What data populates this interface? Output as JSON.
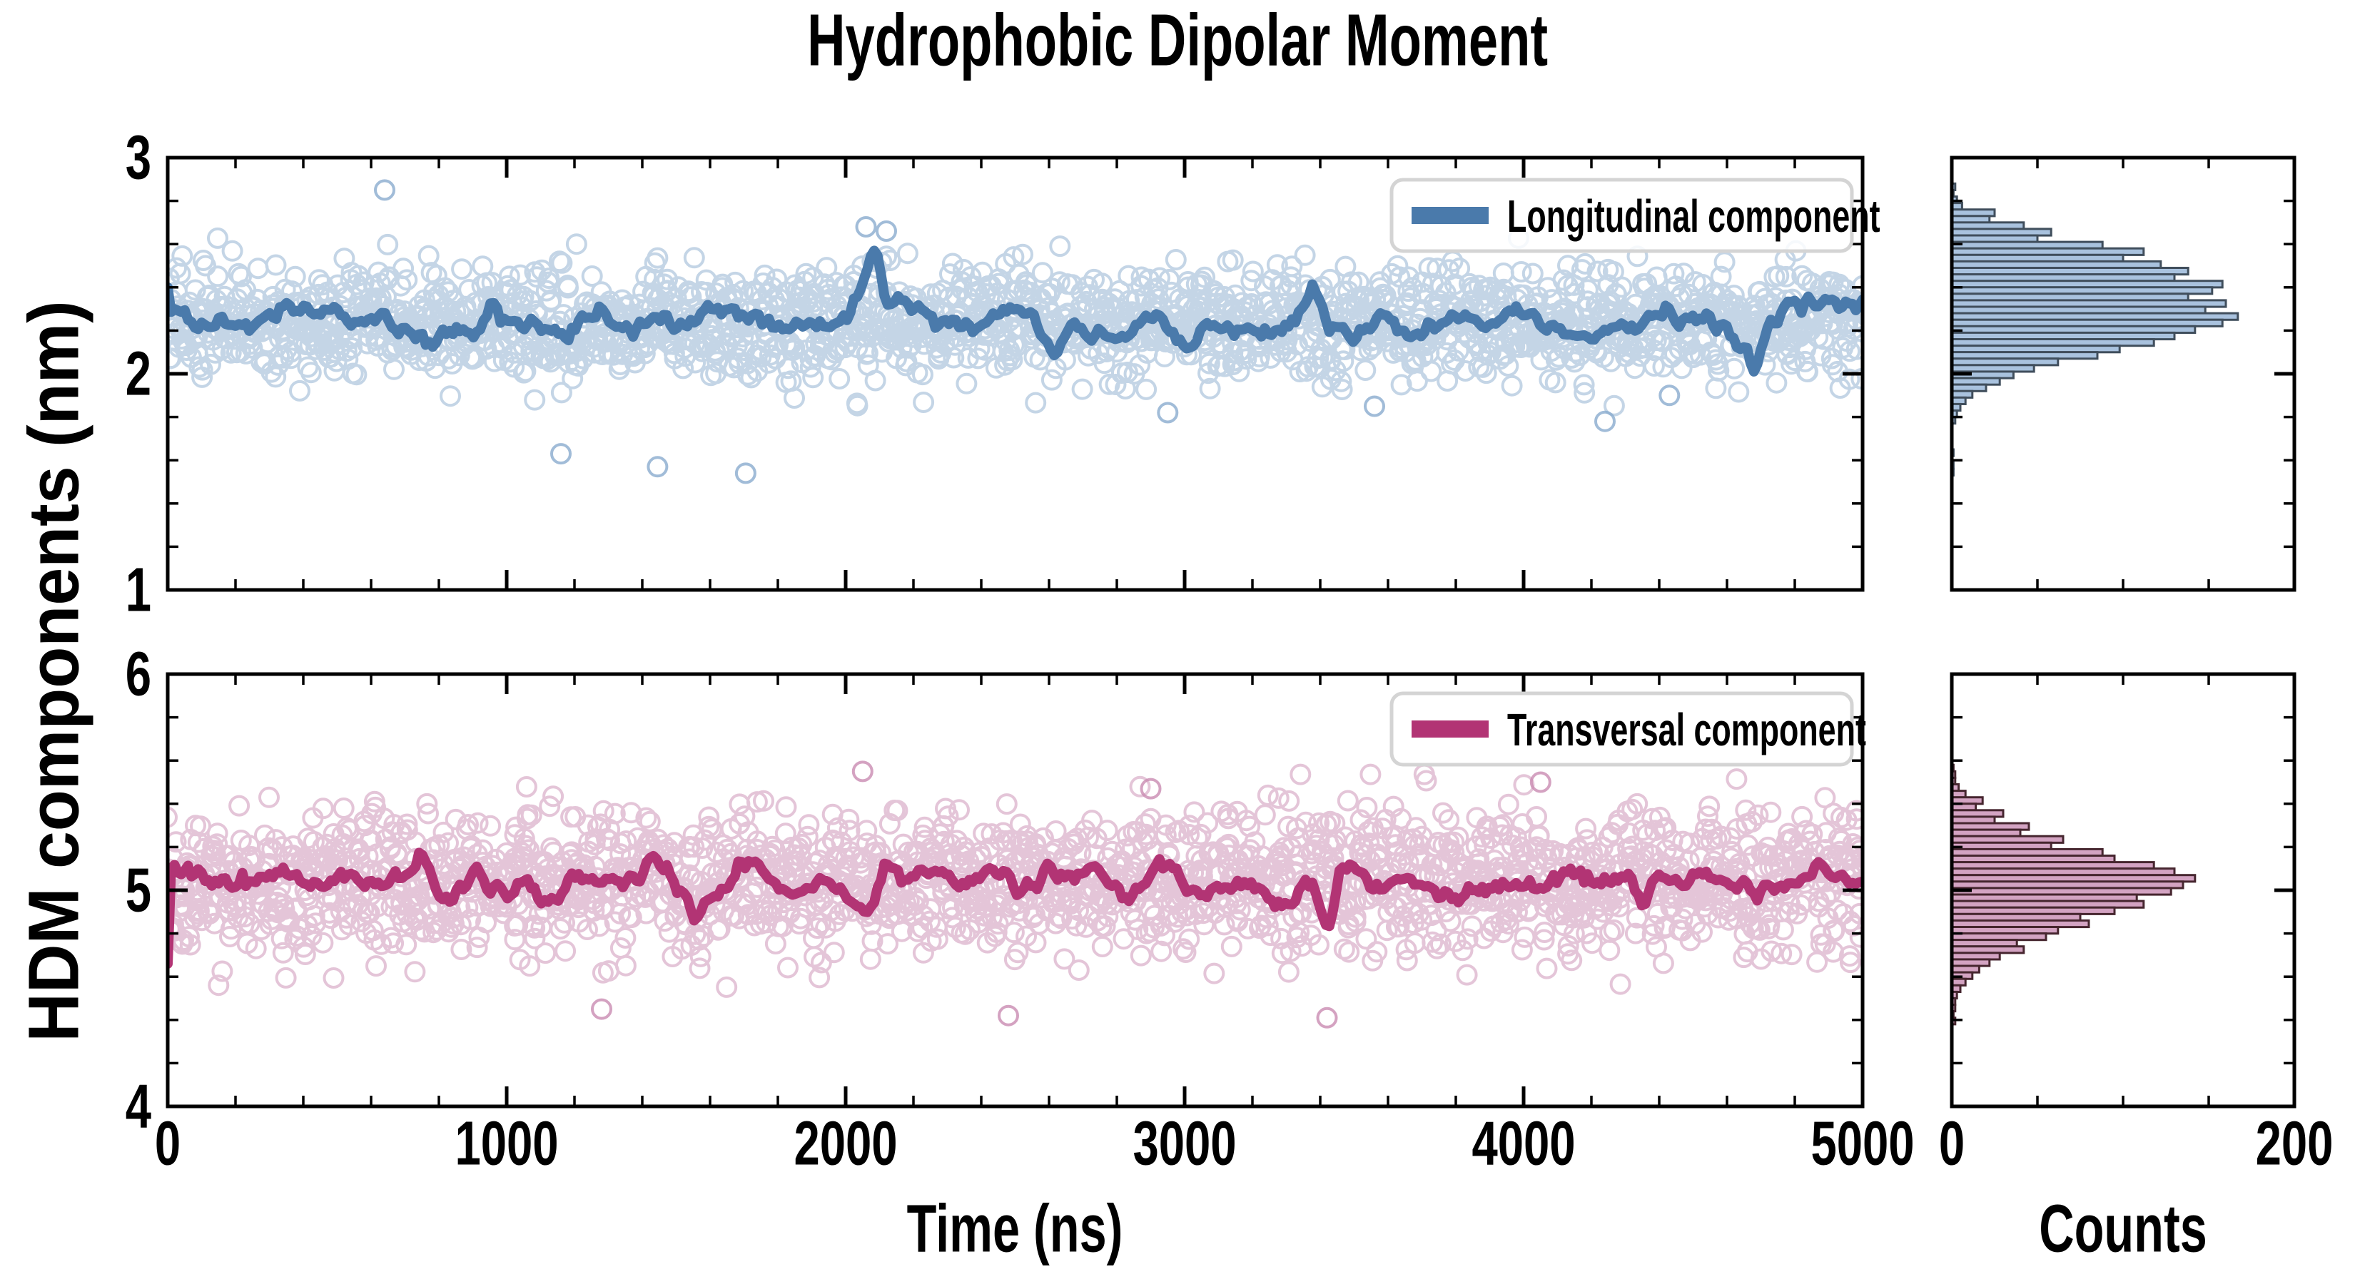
{
  "chart_data": {
    "type": "scatter+line with marginal histograms",
    "title": "Hydrophobic Dipolar Moment",
    "x_axis": {
      "label": "Time (ns)",
      "range": [
        0,
        5000
      ],
      "major_ticks": [
        0,
        1000,
        2000,
        3000,
        4000,
        5000
      ],
      "minor_tick_step": 200
    },
    "y_axis": {
      "label": "HDM components (nm)"
    },
    "counts_axis": {
      "label": "Counts",
      "range": [
        0,
        200
      ],
      "major_ticks": [
        0,
        200
      ],
      "minor_ticks": [
        50,
        100,
        150
      ]
    },
    "panels": [
      {
        "id": "longitudinal",
        "legend": "Longitudinal component",
        "ylim": [
          1,
          3
        ],
        "major_yticks": [
          1,
          2,
          3
        ],
        "minor_ytick_step": 0.2,
        "line_color": "#4a7aab",
        "scatter_color": "#8aabce",
        "hist_fill": "#a9c2de",
        "hist_edge": "#404e5c",
        "series": {
          "mean": 2.24,
          "std": 0.125,
          "n": 2000,
          "seed": 20240,
          "line_start": 2.4,
          "line_features": [
            {
              "x": 2080,
              "dy": 0.2
            },
            {
              "x": 3380,
              "dy": 0.16
            },
            {
              "x": 2620,
              "dy": -0.13
            },
            {
              "x": 4680,
              "dy": -0.12
            },
            {
              "x": 960,
              "dy": 0.1
            }
          ],
          "outliers": [
            [
              640,
              2.85
            ],
            [
              1160,
              1.63
            ],
            [
              1445,
              1.57
            ],
            [
              1705,
              1.54
            ],
            [
              2060,
              2.68
            ],
            [
              2120,
              2.66
            ],
            [
              2950,
              1.82
            ],
            [
              3560,
              1.85
            ],
            [
              4240,
              1.78
            ],
            [
              4430,
              1.9
            ]
          ]
        },
        "histogram": {
          "bin_width": 0.03,
          "centers": [
            2.865,
            2.835,
            2.805,
            2.775,
            2.745,
            2.715,
            2.685,
            2.655,
            2.625,
            2.595,
            2.565,
            2.535,
            2.505,
            2.475,
            2.445,
            2.415,
            2.385,
            2.355,
            2.325,
            2.295,
            2.265,
            2.235,
            2.205,
            2.175,
            2.145,
            2.115,
            2.085,
            2.055,
            2.025,
            1.995,
            1.965,
            1.935,
            1.905,
            1.875,
            1.845,
            1.815,
            1.785,
            1.635,
            1.575,
            1.545
          ],
          "counts": [
            2,
            1,
            3,
            6,
            25,
            22,
            42,
            58,
            50,
            88,
            112,
            100,
            122,
            138,
            130,
            158,
            152,
            138,
            160,
            148,
            167,
            158,
            142,
            130,
            118,
            98,
            85,
            62,
            48,
            36,
            28,
            20,
            12,
            8,
            5,
            3,
            2,
            1,
            1,
            1
          ]
        }
      },
      {
        "id": "transversal",
        "legend": "Transversal component",
        "ylim": [
          4,
          6
        ],
        "major_yticks": [
          4,
          5,
          6
        ],
        "minor_ytick_step": 0.2,
        "line_color": "#b23474",
        "scatter_color": "#c98bb1",
        "hist_fill": "#d3a3c2",
        "hist_edge": "#46262f",
        "series": {
          "mean": 5.04,
          "std": 0.16,
          "n": 2000,
          "seed": 77777,
          "line_start": 4.66,
          "line_features": [
            {
              "x": 760,
              "dy": 0.12
            },
            {
              "x": 2120,
              "dy": 0.16
            },
            {
              "x": 3420,
              "dy": -0.22
            },
            {
              "x": 4350,
              "dy": -0.15
            },
            {
              "x": 1560,
              "dy": -0.12
            }
          ],
          "outliers": [
            [
              2050,
              5.55
            ],
            [
              2900,
              5.47
            ],
            [
              2480,
              4.42
            ],
            [
              3420,
              4.41
            ],
            [
              1280,
              4.45
            ],
            [
              4050,
              5.5
            ]
          ]
        },
        "histogram": {
          "bin_width": 0.03,
          "centers": [
            5.565,
            5.535,
            5.505,
            5.475,
            5.445,
            5.415,
            5.385,
            5.355,
            5.325,
            5.295,
            5.265,
            5.235,
            5.205,
            5.175,
            5.145,
            5.115,
            5.085,
            5.055,
            5.025,
            4.995,
            4.965,
            4.935,
            4.905,
            4.875,
            4.845,
            4.815,
            4.785,
            4.755,
            4.725,
            4.695,
            4.665,
            4.635,
            4.605,
            4.575,
            4.545,
            4.515,
            4.485,
            4.455,
            4.425,
            4.395
          ],
          "counts": [
            1,
            2,
            2,
            4,
            8,
            18,
            14,
            30,
            25,
            45,
            40,
            65,
            58,
            88,
            95,
            118,
            130,
            142,
            135,
            128,
            108,
            112,
            95,
            75,
            80,
            62,
            55,
            38,
            42,
            28,
            22,
            16,
            12,
            8,
            5,
            3,
            2,
            2,
            1,
            2
          ]
        }
      }
    ]
  }
}
